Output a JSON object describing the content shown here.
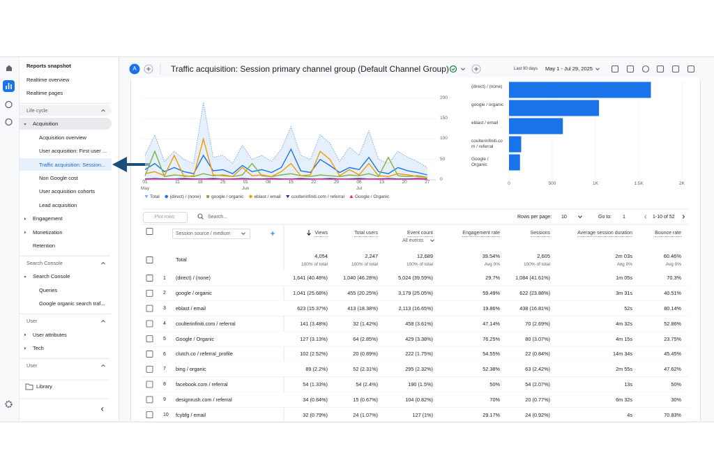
{
  "header": {
    "avatar": "A",
    "title": "Traffic acquisition: Session primary channel group (Default Channel Group)",
    "date_label": "Last 90 days",
    "date_range": "May 1 - Jul 29, 2025"
  },
  "nav": {
    "top": [
      "Reports snapshot",
      "Realtime overview",
      "Realtime pages"
    ],
    "sections": [
      {
        "title": "Life cycle",
        "groups": [
          {
            "name": "Acquisition",
            "expanded": true,
            "items": [
              "Acquisition overview",
              "User acquisition: First user ...",
              "Traffic acquisition: Session...",
              "Non Google cost",
              "User acquisition cohorts",
              "Lead acquisition"
            ]
          },
          {
            "name": "Engagement",
            "expanded": false
          },
          {
            "name": "Monetization",
            "expanded": false
          },
          {
            "name": "Retention"
          }
        ]
      },
      {
        "title": "Search Console",
        "groups": [
          {
            "name": "Search Console",
            "expanded": true,
            "items": [
              "Queries",
              "Google organic search traf..."
            ]
          }
        ]
      },
      {
        "title": "User",
        "groups": [
          {
            "name": "User attributes",
            "expanded": false
          },
          {
            "name": "Tech",
            "expanded": false
          }
        ]
      },
      {
        "title": "User",
        "groups": []
      }
    ],
    "library": "Library"
  },
  "chart_data": [
    {
      "type": "line",
      "x": [
        0,
        3,
        6,
        9,
        12,
        15,
        18,
        21,
        24,
        27,
        30,
        33,
        36,
        39,
        42,
        45,
        48,
        51,
        54,
        57,
        60,
        63,
        66,
        69,
        72,
        75,
        78,
        81,
        84,
        87
      ],
      "xlim": [
        0,
        89
      ],
      "xticks": [
        {
          "value": 0,
          "label": "01\nMay"
        },
        {
          "value": 10,
          "label": "11"
        },
        {
          "value": 17,
          "label": "18"
        },
        {
          "value": 24,
          "label": "25"
        },
        {
          "value": 31,
          "label": "01\nJun"
        },
        {
          "value": 38,
          "label": "08"
        },
        {
          "value": 45,
          "label": "15"
        },
        {
          "value": 52,
          "label": "22"
        },
        {
          "value": 59,
          "label": "29"
        },
        {
          "value": 66,
          "label": "06\nJul"
        },
        {
          "value": 73,
          "label": "13"
        },
        {
          "value": 80,
          "label": "20"
        },
        {
          "value": 87,
          "label": "27"
        }
      ],
      "ylim": [
        0,
        200
      ],
      "yticks": [
        0,
        50,
        100,
        150,
        200
      ],
      "grid": true,
      "series": [
        {
          "name": "Total",
          "color": "#7baaf7",
          "marker": "pin",
          "values": [
            60,
            110,
            45,
            70,
            50,
            40,
            190,
            55,
            60,
            40,
            85,
            50,
            60,
            45,
            75,
            130,
            60,
            50,
            110,
            90,
            45,
            80,
            60,
            120,
            50,
            40,
            70,
            55,
            45,
            30
          ]
        },
        {
          "name": "(direct) / (none)",
          "color": "#1a73e8",
          "marker": "circle",
          "values": [
            25,
            40,
            20,
            30,
            20,
            15,
            60,
            22,
            25,
            15,
            35,
            20,
            25,
            18,
            30,
            75,
            22,
            18,
            50,
            35,
            18,
            30,
            25,
            55,
            20,
            15,
            30,
            22,
            18,
            12
          ]
        },
        {
          "name": "google / organic",
          "color": "#7cb342",
          "marker": "square",
          "values": [
            10,
            70,
            8,
            12,
            10,
            8,
            15,
            10,
            12,
            8,
            12,
            40,
            10,
            8,
            12,
            15,
            10,
            8,
            12,
            10,
            8,
            12,
            10,
            15,
            8,
            55,
            10,
            8,
            10,
            6
          ]
        },
        {
          "name": "eblast / email",
          "color": "#f29900",
          "marker": "diamond",
          "values": [
            15,
            20,
            10,
            60,
            8,
            10,
            100,
            12,
            10,
            8,
            30,
            10,
            12,
            8,
            20,
            40,
            10,
            12,
            70,
            50,
            10,
            25,
            12,
            40,
            10,
            8,
            15,
            12,
            8,
            5
          ]
        },
        {
          "name": "coulterinfiniti.com / referral",
          "color": "#283593",
          "marker": "triangle-down",
          "values": [
            2,
            3,
            2,
            2,
            3,
            2,
            2,
            3,
            2,
            2,
            3,
            2,
            2,
            3,
            2,
            2,
            3,
            2,
            2,
            3,
            2,
            2,
            3,
            2,
            2,
            3,
            2,
            2,
            3,
            2
          ]
        },
        {
          "name": "Google / Organic",
          "color": "#e91e8c",
          "marker": "triangle",
          "values": [
            1,
            2,
            1,
            2,
            1,
            1,
            2,
            1,
            2,
            1,
            2,
            1,
            1,
            2,
            1,
            2,
            1,
            1,
            2,
            1,
            2,
            1,
            1,
            2,
            1,
            2,
            1,
            1,
            2,
            1
          ]
        }
      ]
    },
    {
      "type": "bar",
      "orientation": "horizontal",
      "categories": [
        "(direct) / (none)",
        "google / organic",
        "eblast / email",
        "coulterinfiniti.com / referral",
        "Google / Organic"
      ],
      "values": [
        1641,
        1041,
        623,
        141,
        127
      ],
      "color": "#1a73e8",
      "xlim": [
        0,
        2000
      ],
      "xticks": [
        0,
        500,
        {
          "value": 1000,
          "label": "1K"
        },
        {
          "value": 1500,
          "label": "1.5K"
        },
        {
          "value": 2000,
          "label": "2K"
        }
      ],
      "grid": true
    }
  ],
  "toolbar": {
    "plot_rows": "Plot rows",
    "search": "Search...",
    "rows_per_page_label": "Rows per page:",
    "rows_per_page": "10",
    "goto_label": "Go to:",
    "goto": "1",
    "pagination": "1-10 of 52"
  },
  "table": {
    "dimension": "Session source / medium",
    "columns": [
      "Views",
      "Total users",
      "Event count",
      "Engagement rate",
      "Sessions",
      "Average session duration",
      "Bounce rate"
    ],
    "event_filter": "All events",
    "total": {
      "label": "Total",
      "values": [
        "4,054",
        "2,247",
        "12,689",
        "39.54%",
        "2,605",
        "2m 03s",
        "60.46%"
      ],
      "subs": [
        "100% of total",
        "100% of total",
        "100% of total",
        "Avg 0%",
        "100% of total",
        "Avg 0%",
        "Avg 0%"
      ]
    },
    "rows": [
      [
        "1",
        "(direct) / (none)",
        "1,641 (40.48%)",
        "1,040 (46.28%)",
        "5,024 (39.59%)",
        "29.7%",
        "1,084 (41.61%)",
        "1m 05s",
        "70.3%"
      ],
      [
        "2",
        "google / organic",
        "1,041 (25.68%)",
        "455 (20.25%)",
        "3,179 (25.05%)",
        "59.49%",
        "622 (23.88%)",
        "3m 31s",
        "40.51%"
      ],
      [
        "3",
        "eblast / email",
        "623 (15.37%)",
        "413 (18.38%)",
        "2,113 (16.65%)",
        "19.86%",
        "438 (16.81%)",
        "52s",
        "80.14%"
      ],
      [
        "4",
        "coulterinfiniti.com / referral",
        "141 (3.48%)",
        "32 (1.42%)",
        "458 (3.61%)",
        "47.14%",
        "70 (2.69%)",
        "4m 32s",
        "52.86%"
      ],
      [
        "5",
        "Google / Organic",
        "127 (3.13%)",
        "64 (2.85%)",
        "429 (3.38%)",
        "76.25%",
        "80 (3.07%)",
        "4m 15s",
        "23.75%"
      ],
      [
        "6",
        "clutch.co / referral_profile",
        "102 (2.52%)",
        "20 (0.89%)",
        "222 (1.75%)",
        "54.55%",
        "22 (0.84%)",
        "14m 34s",
        "45.45%"
      ],
      [
        "7",
        "bing / organic",
        "89 (2.2%)",
        "52 (2.31%)",
        "295 (2.32%)",
        "52.38%",
        "63 (2.42%)",
        "2m 55s",
        "47.62%"
      ],
      [
        "8",
        "facebook.com / referral",
        "54 (1.33%)",
        "54 (2.4%)",
        "190 (1.5%)",
        "50%",
        "54 (2.07%)",
        "13s",
        "50%"
      ],
      [
        "9",
        "designrush.com / referral",
        "34 (0.84%)",
        "15 (0.67%)",
        "104 (0.82%)",
        "70%",
        "20 (0.77%)",
        "6m 32s",
        "30%"
      ],
      [
        "10",
        "fcybfg / email",
        "32 (0.79%)",
        "24 (1.07%)",
        "127 (1%)",
        "29.17%",
        "24 (0.92%)",
        "4s",
        "70.83%"
      ]
    ]
  }
}
